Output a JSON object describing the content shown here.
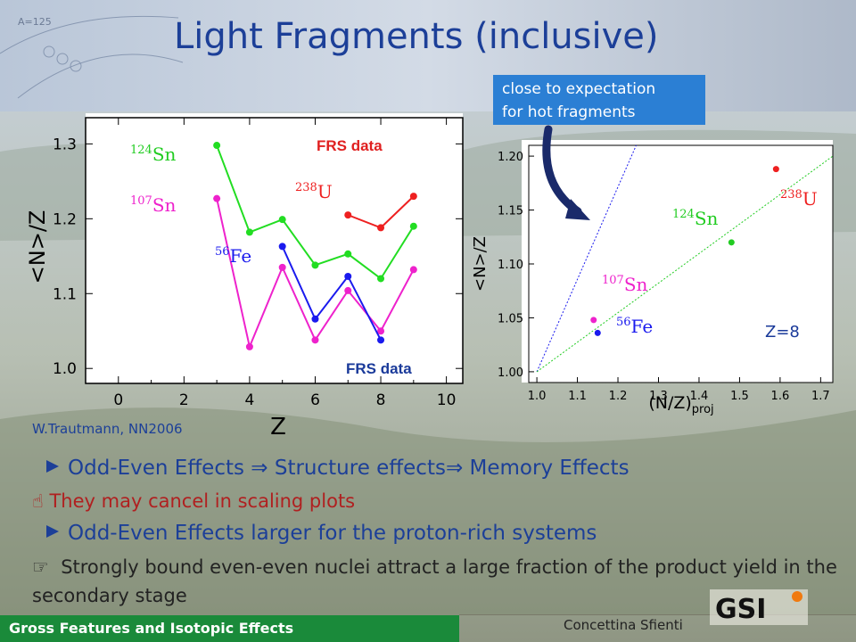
{
  "slide": {
    "title": "Light Fragments (inclusive)",
    "callout": [
      "close to expectation",
      "for hot fragments"
    ],
    "citation": "W.Trautmann, NN2006",
    "bullets": [
      "Odd-Even Effects ⇒ Structure effects⇒ Memory Effects",
      "They may cancel in scaling plots",
      "Odd-Even Effects larger for the proton-rich systems",
      "Strongly bound even-even nuclei attract a large fraction of the product yield in the secondary stage"
    ],
    "footer": {
      "section": "Gross Features and Isotopic Effects",
      "author": "Concettina Sfienti",
      "logo": "GSI"
    }
  },
  "chart_data": [
    {
      "type": "line",
      "xlabel": "Z",
      "ylabel": "<N>/Z",
      "xlim": [
        -1,
        10.5
      ],
      "ylim": [
        0.98,
        1.335
      ],
      "xticks": [
        "0",
        "2",
        "4",
        "6",
        "8",
        "10"
      ],
      "yticks": [
        "1.0",
        "1.1",
        "1.2",
        "1.3"
      ],
      "annotations": [
        "FRS data",
        "FRS data"
      ],
      "series": [
        {
          "name": "124Sn",
          "color": "#22dd22",
          "x": [
            3,
            4,
            5,
            6,
            7,
            8,
            9
          ],
          "y": [
            1.298,
            1.182,
            1.199,
            1.138,
            1.153,
            1.12,
            1.19
          ]
        },
        {
          "name": "107Sn",
          "color": "#ee22cc",
          "x": [
            3,
            4,
            5,
            6,
            7,
            8,
            9
          ],
          "y": [
            1.227,
            1.029,
            1.135,
            1.038,
            1.104,
            1.05,
            1.132
          ]
        },
        {
          "name": "56Fe",
          "color": "#1a1aee",
          "x": [
            5,
            6,
            7,
            8
          ],
          "y": [
            1.163,
            1.066,
            1.123,
            1.038
          ]
        },
        {
          "name": "238U",
          "color": "#ee2020",
          "x": [
            7,
            8,
            9
          ],
          "y": [
            1.205,
            1.188,
            1.23
          ]
        }
      ]
    },
    {
      "type": "scatter",
      "xlabel": "(N/Z)proj",
      "ylabel": "<N>/Z",
      "xlim": [
        0.98,
        1.73
      ],
      "ylim": [
        0.99,
        1.21
      ],
      "xticks": [
        "1.0",
        "1.1",
        "1.2",
        "1.3",
        "1.4",
        "1.5",
        "1.6",
        "1.7"
      ],
      "yticks": [
        "1.00",
        "1.05",
        "1.10",
        "1.15",
        "1.20"
      ],
      "annotation": "Z=8",
      "reference_lines": [
        "dotted blue line through (1.0, 1.0)",
        "dotted green line through (1.0, 1.0)"
      ],
      "series": [
        {
          "name": "107Sn",
          "color": "#ee22cc",
          "x": [
            1.14
          ],
          "y": [
            1.048
          ]
        },
        {
          "name": "56Fe",
          "color": "#1a1aee",
          "x": [
            1.15
          ],
          "y": [
            1.036
          ]
        },
        {
          "name": "124Sn",
          "color": "#22cc22",
          "x": [
            1.48
          ],
          "y": [
            1.12
          ]
        },
        {
          "name": "238U",
          "color": "#ee2020",
          "x": [
            1.59
          ],
          "y": [
            1.188
          ]
        }
      ]
    }
  ]
}
